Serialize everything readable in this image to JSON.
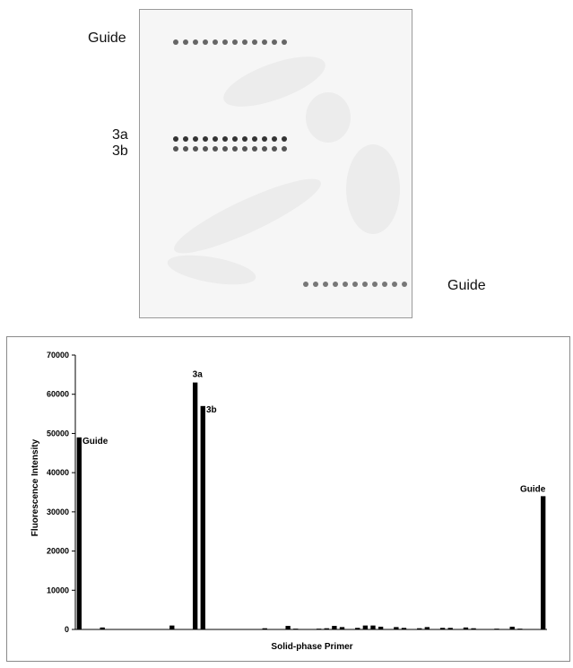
{
  "array_image": {
    "labels": {
      "guide_top": "Guide",
      "row_3a": "3a",
      "row_3b": "3b",
      "guide_bottom": "Guide"
    }
  },
  "chart_data": {
    "type": "bar",
    "title": "",
    "xlabel": "Solid-phase Primer",
    "ylabel": "Fluorescence Intensity",
    "ylim": [
      0,
      70000
    ],
    "yticks": [
      "0",
      "10000",
      "20000",
      "30000",
      "40000",
      "50000",
      "60000",
      "70000"
    ],
    "grid": false,
    "legend": "none",
    "bar_color": "#000000",
    "values": [
      49000,
      0,
      0,
      500,
      0,
      0,
      0,
      0,
      0,
      0,
      0,
      0,
      1000,
      0,
      0,
      63000,
      57000,
      0,
      0,
      0,
      0,
      0,
      0,
      0,
      300,
      0,
      0,
      900,
      200,
      0,
      100,
      200,
      300,
      900,
      600,
      0,
      400,
      1000,
      1000,
      700,
      0,
      600,
      400,
      0,
      300,
      600,
      0,
      400,
      400,
      0,
      500,
      300,
      0,
      100,
      200,
      0,
      700,
      200,
      0,
      0,
      34000
    ],
    "annotations": [
      {
        "index": 0,
        "text": "Guide"
      },
      {
        "index": 15,
        "text": "3a"
      },
      {
        "index": 16,
        "text": "3b"
      },
      {
        "index": 60,
        "text": "Guide"
      }
    ]
  }
}
